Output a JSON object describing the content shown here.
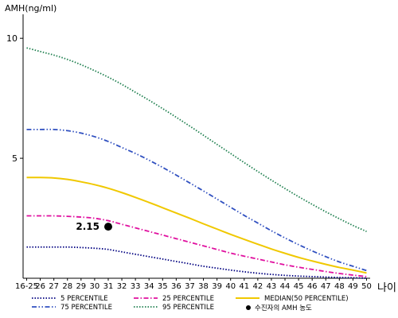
{
  "chart_data": {
    "type": "line",
    "ylabel": "AMH(ng/ml)",
    "xlabel": "나이",
    "ylim": [
      0,
      11
    ],
    "yticks": [
      5,
      10
    ],
    "x": [
      "16-25",
      "26",
      "27",
      "28",
      "29",
      "30",
      "31",
      "32",
      "33",
      "34",
      "35",
      "36",
      "37",
      "38",
      "39",
      "40",
      "41",
      "42",
      "43",
      "44",
      "45",
      "46",
      "47",
      "48",
      "49",
      "50"
    ],
    "series": [
      {
        "name": "5 PERCENTILE",
        "color": "#000080",
        "dash": "dotted",
        "values": [
          1.3,
          1.3,
          1.3,
          1.3,
          1.28,
          1.25,
          1.2,
          1.1,
          1.0,
          0.9,
          0.8,
          0.7,
          0.6,
          0.5,
          0.42,
          0.34,
          0.27,
          0.21,
          0.16,
          0.12,
          0.09,
          0.07,
          0.05,
          0.03,
          0.02,
          0.0
        ]
      },
      {
        "name": "25 PERCENTILE",
        "color": "#e0109f",
        "dash": "dashdot",
        "values": [
          2.6,
          2.6,
          2.6,
          2.58,
          2.55,
          2.5,
          2.4,
          2.25,
          2.1,
          1.95,
          1.8,
          1.65,
          1.5,
          1.35,
          1.2,
          1.05,
          0.92,
          0.8,
          0.68,
          0.56,
          0.46,
          0.37,
          0.28,
          0.2,
          0.13,
          0.07
        ]
      },
      {
        "name": "MEDIAN(50 PERCENTILE)",
        "color": "#f0c800",
        "dash": "solid",
        "values": [
          4.2,
          4.2,
          4.18,
          4.12,
          4.02,
          3.9,
          3.75,
          3.57,
          3.37,
          3.16,
          2.94,
          2.72,
          2.5,
          2.27,
          2.05,
          1.83,
          1.62,
          1.42,
          1.22,
          1.04,
          0.87,
          0.72,
          0.58,
          0.45,
          0.34,
          0.22
        ]
      },
      {
        "name": "75 PERCENTILE",
        "color": "#3050c0",
        "dash": "dashdotdot",
        "values": [
          6.2,
          6.2,
          6.2,
          6.15,
          6.05,
          5.9,
          5.7,
          5.45,
          5.2,
          4.92,
          4.62,
          4.3,
          3.97,
          3.64,
          3.3,
          2.96,
          2.62,
          2.3,
          1.98,
          1.68,
          1.4,
          1.14,
          0.9,
          0.68,
          0.5,
          0.32
        ]
      },
      {
        "name": "95 PERCENTILE",
        "color": "#208050",
        "dash": "dotted",
        "values": [
          9.6,
          9.45,
          9.3,
          9.12,
          8.9,
          8.65,
          8.38,
          8.08,
          7.75,
          7.42,
          7.07,
          6.71,
          6.34,
          5.96,
          5.58,
          5.2,
          4.82,
          4.45,
          4.09,
          3.74,
          3.4,
          3.08,
          2.77,
          2.48,
          2.2,
          1.95
        ]
      }
    ],
    "marker": {
      "name": "수진자의 AMH 농도",
      "x": "31",
      "y": 2.15,
      "label": "2.15",
      "color": "#000000"
    },
    "legend_position": "bottom"
  }
}
